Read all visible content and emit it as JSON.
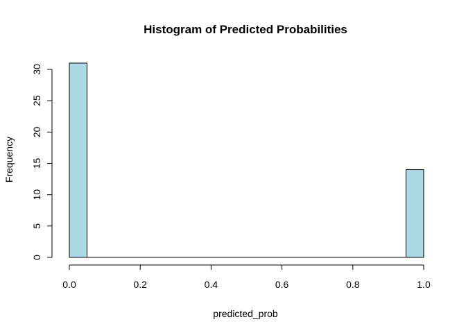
{
  "chart_data": {
    "type": "bar",
    "title": "Histogram of Predicted Probabilities",
    "xlabel": "predicted_prob",
    "ylabel": "Frequency",
    "xlim": [
      0.0,
      1.0
    ],
    "ylim": [
      0,
      30
    ],
    "bin_width": 0.05,
    "bins": [
      {
        "start": 0.0,
        "end": 0.05,
        "count": 31
      },
      {
        "start": 0.05,
        "end": 0.1,
        "count": 0
      },
      {
        "start": 0.1,
        "end": 0.15,
        "count": 0
      },
      {
        "start": 0.15,
        "end": 0.2,
        "count": 0
      },
      {
        "start": 0.2,
        "end": 0.25,
        "count": 0
      },
      {
        "start": 0.25,
        "end": 0.3,
        "count": 0
      },
      {
        "start": 0.3,
        "end": 0.35,
        "count": 0
      },
      {
        "start": 0.35,
        "end": 0.4,
        "count": 0
      },
      {
        "start": 0.4,
        "end": 0.45,
        "count": 0
      },
      {
        "start": 0.45,
        "end": 0.5,
        "count": 0
      },
      {
        "start": 0.5,
        "end": 0.55,
        "count": 0
      },
      {
        "start": 0.55,
        "end": 0.6,
        "count": 0
      },
      {
        "start": 0.6,
        "end": 0.65,
        "count": 0
      },
      {
        "start": 0.65,
        "end": 0.7,
        "count": 0
      },
      {
        "start": 0.7,
        "end": 0.75,
        "count": 0
      },
      {
        "start": 0.75,
        "end": 0.8,
        "count": 0
      },
      {
        "start": 0.8,
        "end": 0.85,
        "count": 0
      },
      {
        "start": 0.85,
        "end": 0.9,
        "count": 0
      },
      {
        "start": 0.9,
        "end": 0.95,
        "count": 0
      },
      {
        "start": 0.95,
        "end": 1.0,
        "count": 14
      }
    ],
    "x_ticks": [
      0.0,
      0.2,
      0.4,
      0.6,
      0.8,
      1.0
    ],
    "x_tick_labels": [
      "0.0",
      "0.2",
      "0.4",
      "0.6",
      "0.8",
      "1.0"
    ],
    "y_ticks": [
      0,
      5,
      10,
      15,
      20,
      25,
      30
    ],
    "y_tick_labels": [
      "0",
      "5",
      "10",
      "15",
      "20",
      "25",
      "30"
    ],
    "bar_color": "#add8e6",
    "bar_border_color": "#000000",
    "grid": false,
    "legend": "none"
  }
}
